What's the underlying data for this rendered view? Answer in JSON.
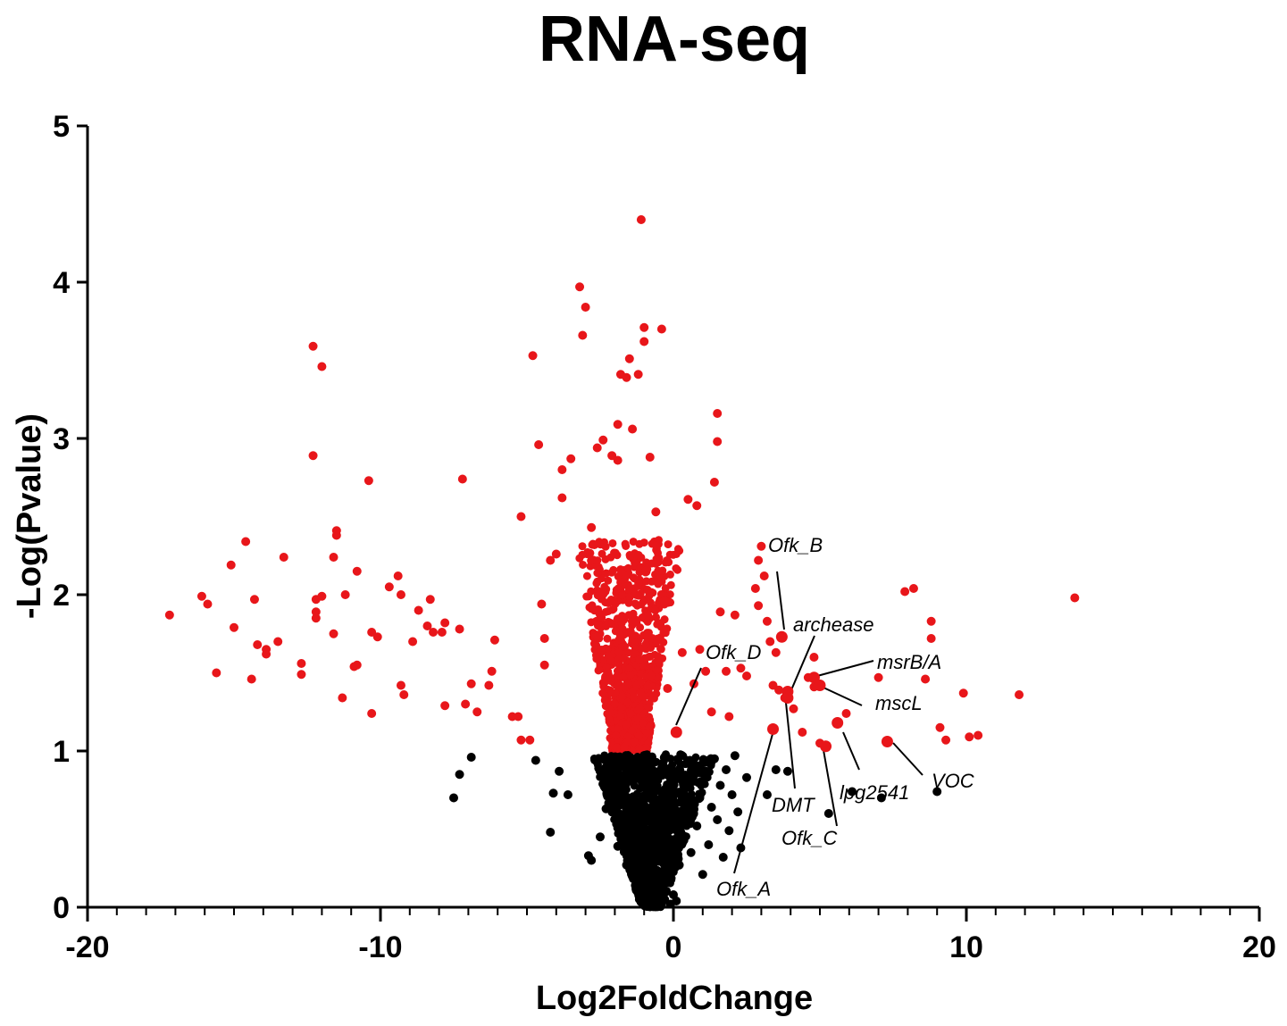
{
  "chart_data": {
    "type": "scatter",
    "title": "RNA-seq",
    "xlabel": "Log2FoldChange",
    "ylabel": "-Log(Pvalue)",
    "xlim": [
      -20,
      20
    ],
    "ylim": [
      0,
      5
    ],
    "x_ticks": [
      "-20",
      "-10",
      "0",
      "10",
      "20"
    ],
    "y_ticks": [
      "0",
      "1",
      "2",
      "3",
      "4",
      "5"
    ],
    "grid": false,
    "colors": {
      "significant": "#e8161a",
      "not_significant": "#000000",
      "axis": "#000000"
    },
    "significance_threshold": 1,
    "series": [
      {
        "color": "#e8161a",
        "points": [
          [
            -17.2,
            1.87
          ],
          [
            -16.1,
            1.99
          ],
          [
            -15.9,
            1.94
          ],
          [
            -15.6,
            1.5
          ],
          [
            -15.1,
            2.19
          ],
          [
            -15.0,
            1.79
          ],
          [
            -14.6,
            2.34
          ],
          [
            -14.4,
            1.46
          ],
          [
            -14.3,
            1.97
          ],
          [
            -14.2,
            1.68
          ],
          [
            -13.9,
            1.65
          ],
          [
            -13.9,
            1.62
          ],
          [
            -13.5,
            1.7
          ],
          [
            -13.3,
            2.24
          ],
          [
            -12.7,
            1.49
          ],
          [
            -12.7,
            1.56
          ],
          [
            -12.3,
            3.59
          ],
          [
            -12.3,
            2.89
          ],
          [
            -12.2,
            1.97
          ],
          [
            -12.2,
            1.85
          ],
          [
            -12.2,
            1.89
          ],
          [
            -12.0,
            3.46
          ],
          [
            -12.0,
            1.99
          ],
          [
            -11.6,
            1.75
          ],
          [
            -11.6,
            2.24
          ],
          [
            -11.5,
            2.38
          ],
          [
            -11.5,
            2.41
          ],
          [
            -11.3,
            1.34
          ],
          [
            -11.2,
            2.0
          ],
          [
            -10.9,
            1.54
          ],
          [
            -10.8,
            1.55
          ],
          [
            -10.8,
            2.15
          ],
          [
            -10.4,
            2.73
          ],
          [
            -10.3,
            1.24
          ],
          [
            -10.3,
            1.76
          ],
          [
            -10.1,
            1.73
          ],
          [
            -9.7,
            2.05
          ],
          [
            -9.4,
            2.12
          ],
          [
            -9.3,
            1.42
          ],
          [
            -9.3,
            2.0
          ],
          [
            -9.2,
            1.36
          ],
          [
            -8.9,
            1.7
          ],
          [
            -8.7,
            1.9
          ],
          [
            -8.4,
            1.8
          ],
          [
            -8.3,
            1.97
          ],
          [
            -8.2,
            1.76
          ],
          [
            -7.9,
            1.76
          ],
          [
            -7.8,
            1.82
          ],
          [
            -7.8,
            1.29
          ],
          [
            -7.3,
            1.78
          ],
          [
            -7.2,
            2.74
          ],
          [
            -7.1,
            1.3
          ],
          [
            -6.9,
            1.43
          ],
          [
            -6.7,
            1.25
          ],
          [
            -6.3,
            1.42
          ],
          [
            -6.2,
            1.51
          ],
          [
            -6.1,
            1.71
          ],
          [
            -5.5,
            1.22
          ],
          [
            -5.3,
            1.22
          ],
          [
            -5.2,
            1.07
          ],
          [
            -5.2,
            2.5
          ],
          [
            -4.9,
            1.07
          ],
          [
            -4.8,
            3.53
          ],
          [
            -4.6,
            2.96
          ],
          [
            -4.5,
            1.94
          ],
          [
            -4.4,
            1.72
          ],
          [
            -4.4,
            1.55
          ],
          [
            -4.2,
            2.22
          ],
          [
            -4.0,
            2.26
          ],
          [
            -3.8,
            2.62
          ],
          [
            -3.8,
            2.8
          ],
          [
            -3.5,
            2.87
          ],
          [
            -3.2,
            3.97
          ],
          [
            -3.1,
            3.66
          ],
          [
            -3.0,
            3.84
          ],
          [
            -2.8,
            2.43
          ],
          [
            -2.7,
            2.32
          ],
          [
            -2.6,
            2.94
          ],
          [
            -2.4,
            2.99
          ],
          [
            -2.1,
            2.89
          ],
          [
            -1.9,
            2.86
          ],
          [
            -1.9,
            3.09
          ],
          [
            -1.8,
            3.41
          ],
          [
            -1.6,
            3.39
          ],
          [
            -1.5,
            3.51
          ],
          [
            -1.4,
            3.06
          ],
          [
            -1.2,
            3.41
          ],
          [
            -1.1,
            4.4
          ],
          [
            -1.0,
            3.62
          ],
          [
            -1.0,
            3.71
          ],
          [
            -0.8,
            2.88
          ],
          [
            -0.6,
            2.53
          ],
          [
            -0.4,
            3.7
          ],
          [
            -0.3,
            1.96
          ],
          [
            -0.2,
            1.4
          ],
          [
            0.3,
            1.63
          ],
          [
            0.5,
            2.61
          ],
          [
            0.7,
            1.43
          ],
          [
            0.8,
            2.57
          ],
          [
            0.9,
            1.65
          ],
          [
            1.1,
            1.51
          ],
          [
            1.3,
            1.25
          ],
          [
            1.4,
            2.72
          ],
          [
            1.5,
            2.98
          ],
          [
            1.5,
            3.16
          ],
          [
            1.6,
            1.89
          ],
          [
            1.8,
            1.51
          ],
          [
            1.9,
            1.22
          ],
          [
            2.1,
            1.87
          ],
          [
            2.3,
            1.53
          ],
          [
            2.5,
            1.48
          ],
          [
            2.8,
            2.04
          ],
          [
            2.9,
            1.93
          ],
          [
            2.9,
            2.22
          ],
          [
            3.0,
            2.31
          ],
          [
            3.1,
            2.12
          ],
          [
            3.2,
            1.83
          ],
          [
            3.3,
            1.7
          ],
          [
            3.4,
            1.42
          ],
          [
            3.5,
            1.63
          ],
          [
            3.6,
            1.39
          ],
          [
            3.7,
            1.73
          ],
          [
            3.8,
            1.34
          ],
          [
            3.9,
            1.38
          ],
          [
            4.1,
            1.27
          ],
          [
            4.4,
            1.12
          ],
          [
            4.6,
            1.47
          ],
          [
            4.8,
            1.41
          ],
          [
            4.8,
            1.6
          ],
          [
            5.0,
            1.05
          ],
          [
            5.2,
            1.03
          ],
          [
            5.6,
            1.18
          ],
          [
            5.9,
            1.24
          ],
          [
            7.0,
            1.47
          ],
          [
            7.3,
            1.06
          ],
          [
            7.9,
            2.02
          ],
          [
            8.2,
            2.04
          ],
          [
            8.6,
            1.46
          ],
          [
            8.8,
            1.83
          ],
          [
            8.8,
            1.72
          ],
          [
            9.1,
            1.15
          ],
          [
            9.3,
            1.07
          ],
          [
            9.9,
            1.37
          ],
          [
            10.1,
            1.09
          ],
          [
            10.4,
            1.1
          ],
          [
            11.8,
            1.36
          ],
          [
            13.7,
            1.98
          ]
        ]
      },
      {
        "color": "#000000",
        "points": [
          [
            -7.5,
            0.7
          ],
          [
            -7.3,
            0.85
          ],
          [
            -6.9,
            0.96
          ],
          [
            -4.7,
            0.94
          ],
          [
            -4.2,
            0.48
          ],
          [
            -4.1,
            0.73
          ],
          [
            -3.9,
            0.87
          ],
          [
            -3.6,
            0.72
          ],
          [
            -2.9,
            0.33
          ],
          [
            -2.8,
            0.3
          ],
          [
            -2.5,
            0.45
          ],
          [
            -2.3,
            0.63
          ],
          [
            -2.1,
            0.77
          ],
          [
            -1.9,
            0.39
          ],
          [
            -1.7,
            0.91
          ],
          [
            -1.6,
            0.27
          ],
          [
            -1.5,
            0.52
          ],
          [
            -1.4,
            0.83
          ],
          [
            -1.3,
            0.14
          ],
          [
            -1.2,
            0.67
          ],
          [
            -1.1,
            0.41
          ],
          [
            -1.0,
            0.95
          ],
          [
            -0.9,
            0.22
          ],
          [
            -0.8,
            0.74
          ],
          [
            -0.7,
            0.55
          ],
          [
            -0.6,
            0.11
          ],
          [
            -0.5,
            0.33
          ],
          [
            -0.4,
            0.86
          ],
          [
            -0.3,
            0.05
          ],
          [
            -0.2,
            0.18
          ],
          [
            -0.1,
            0.02
          ],
          [
            0.0,
            0.08
          ],
          [
            0.1,
            0.04
          ],
          [
            0.2,
            0.27
          ],
          [
            0.3,
            0.44
          ],
          [
            0.4,
            0.61
          ],
          [
            0.5,
            0.79
          ],
          [
            0.6,
            0.35
          ],
          [
            0.7,
            0.92
          ],
          [
            0.8,
            0.52
          ],
          [
            0.9,
            0.7
          ],
          [
            1.0,
            0.21
          ],
          [
            1.1,
            0.87
          ],
          [
            1.2,
            0.4
          ],
          [
            1.3,
            0.64
          ],
          [
            1.4,
            0.95
          ],
          [
            1.5,
            0.56
          ],
          [
            1.6,
            0.78
          ],
          [
            1.7,
            0.32
          ],
          [
            1.8,
            0.88
          ],
          [
            1.9,
            0.49
          ],
          [
            2.0,
            0.72
          ],
          [
            2.1,
            0.97
          ],
          [
            2.2,
            0.61
          ],
          [
            2.3,
            0.38
          ],
          [
            2.5,
            0.83
          ],
          [
            3.2,
            0.72
          ],
          [
            3.5,
            0.88
          ],
          [
            3.9,
            0.87
          ],
          [
            5.3,
            0.6
          ],
          [
            6.1,
            0.74
          ],
          [
            7.1,
            0.7
          ],
          [
            9.0,
            0.74
          ]
        ]
      }
    ],
    "annotations": [
      {
        "label": "Ofk_B"
      },
      {
        "label": "archease"
      },
      {
        "label": "Ofk_D"
      },
      {
        "label": "msrB/A"
      },
      {
        "label": "mscL"
      },
      {
        "label": "lpg2541"
      },
      {
        "label": "VOC"
      },
      {
        "label": "DMT"
      },
      {
        "label": "Ofk_C"
      },
      {
        "label": "Ofk_A"
      }
    ]
  }
}
